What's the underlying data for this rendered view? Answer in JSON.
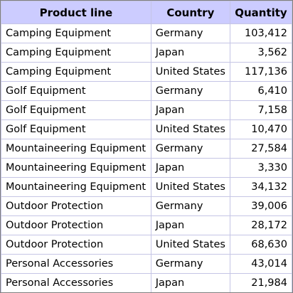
{
  "table": {
    "headers": [
      "Product line",
      "Country",
      "Quantity"
    ],
    "rows": [
      [
        "Camping Equipment",
        "Germany",
        "103,412"
      ],
      [
        "Camping Equipment",
        "Japan",
        "3,562"
      ],
      [
        "Camping Equipment",
        "United States",
        "117,136"
      ],
      [
        "Golf Equipment",
        "Germany",
        "6,410"
      ],
      [
        "Golf Equipment",
        "Japan",
        "7,158"
      ],
      [
        "Golf Equipment",
        "United States",
        "10,470"
      ],
      [
        "Mountaineering Equipment",
        "Germany",
        "27,584"
      ],
      [
        "Mountaineering Equipment",
        "Japan",
        "3,330"
      ],
      [
        "Mountaineering Equipment",
        "United States",
        "34,132"
      ],
      [
        "Outdoor Protection",
        "Germany",
        "39,006"
      ],
      [
        "Outdoor Protection",
        "Japan",
        "28,172"
      ],
      [
        "Outdoor Protection",
        "United States",
        "68,630"
      ],
      [
        "Personal Accessories",
        "Germany",
        "43,014"
      ],
      [
        "Personal Accessories",
        "Japan",
        "21,984"
      ]
    ]
  },
  "colors": {
    "header_background": "#ccccff",
    "grid_line": "#c5c5e5",
    "frame": "#7f7f7f"
  }
}
